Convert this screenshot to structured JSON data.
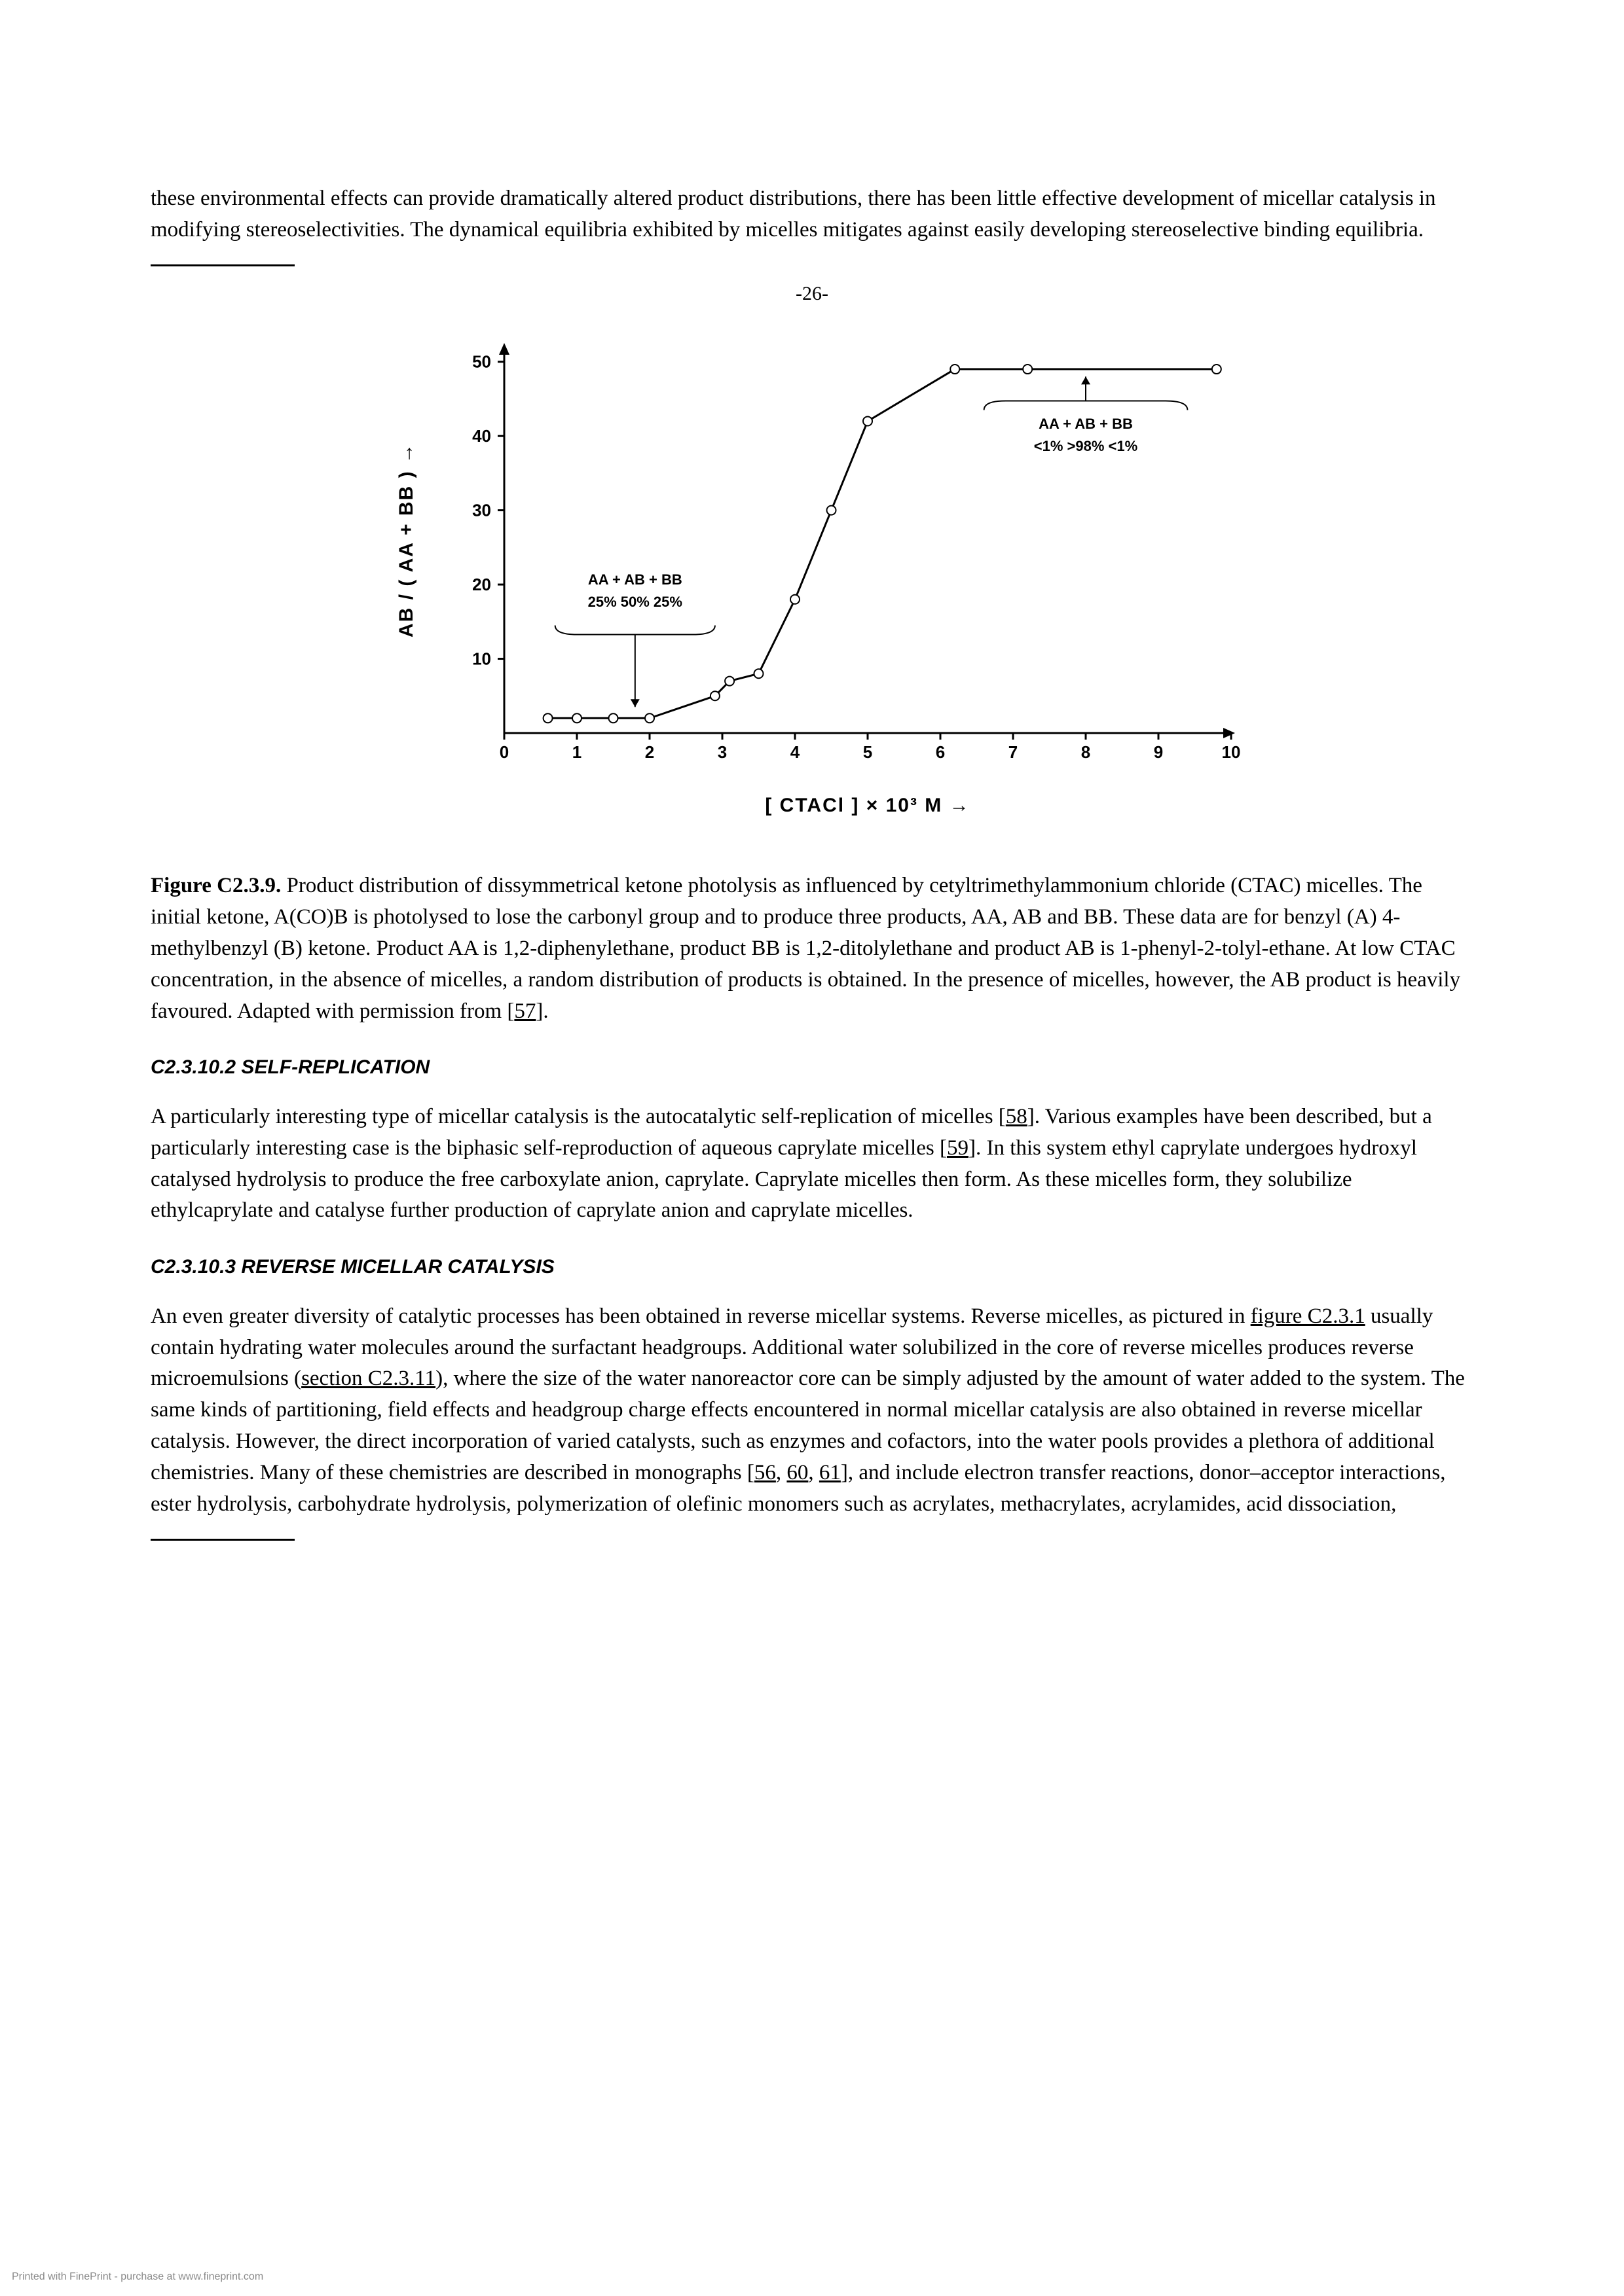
{
  "intro_paragraph": "these environmental effects can provide dramatically altered product distributions, there has been little effective development of micellar catalysis in modifying stereoselectivities. The dynamical equilibria exhibited by micelles mitigates against easily developing stereoselective binding equilibria.",
  "page_marker": "-26-",
  "chart": {
    "type": "line-scatter",
    "x_values": [
      0.6,
      1.0,
      1.5,
      2.0,
      2.9,
      3.1,
      3.5,
      4.0,
      4.5,
      5.0,
      6.2,
      7.2,
      9.8
    ],
    "y_values": [
      2,
      2,
      2,
      2,
      5,
      7,
      8,
      18,
      30,
      42,
      49,
      49,
      49
    ],
    "xlim": [
      0,
      10
    ],
    "ylim": [
      0,
      52
    ],
    "xticks": [
      0,
      1,
      2,
      3,
      4,
      5,
      6,
      7,
      8,
      9,
      10
    ],
    "yticks": [
      10,
      20,
      30,
      40,
      50
    ],
    "ylabel": "AB / ( AA + BB ) →",
    "xlabel": "[ CTACl ] × 10³  M  →",
    "left_annotation": {
      "line1": "AA   +   AB   +   BB",
      "line2": "25%     50%     25%"
    },
    "right_annotation": {
      "line1": "AA   +   AB   +   BB",
      "line2": "<1%    >98%    <1%"
    },
    "marker_color": "#ffffff",
    "marker_stroke": "#000000",
    "line_color": "#000000",
    "axis_color": "#000000",
    "background_color": "#ffffff",
    "axis_fontsize": 26,
    "label_fontsize": 30,
    "annotation_fontsize": 22,
    "line_width": 3,
    "marker_radius": 7
  },
  "figure_caption": {
    "bold": "Figure C2.3.9.",
    "text": " Product distribution of dissymmetrical ketone photolysis as influenced by cetyltrimethylammonium chloride (CTAC) micelles. The initial ketone, A(CO)B is photolysed to lose the carbonyl group and to produce three products, AA, AB and BB. These data are for benzyl (A) 4-methylbenzyl (B) ketone. Product AA is 1,2-diphenylethane, product BB is 1,2-ditolylethane and product AB is 1-phenyl-2-tolyl-ethane. At low CTAC concentration, in the absence of micelles, a random distribution of products is obtained. In the presence of micelles, however, the AB product is heavily favoured. Adapted with permission from [",
    "ref": "57",
    "tail": "]."
  },
  "section1": {
    "heading": "C2.3.10.2 SELF-REPLICATION",
    "body_a": "A particularly interesting type of micellar catalysis is the autocatalytic self-replication of micelles [",
    "ref1": "58",
    "body_b": "]. Various examples have been described, but a particularly interesting case is the biphasic self-reproduction of aqueous caprylate micelles [",
    "ref2": "59",
    "body_c": "]. In this system ethyl caprylate undergoes hydroxyl catalysed hydrolysis to produce the free carboxylate anion, caprylate. Caprylate micelles then form. As these micelles form, they solubilize ethylcaprylate and catalyse further production of caprylate anion and caprylate micelles."
  },
  "section2": {
    "heading": "C2.3.10.3 REVERSE MICELLAR CATALYSIS",
    "body_a": "An even greater diversity of catalytic processes has been obtained in reverse micellar systems. Reverse micelles, as pictured in ",
    "link1": "figure C2.3.1",
    "body_b": " usually contain hydrating water molecules around the surfactant headgroups. Additional water solubilized in the core of reverse micelles produces reverse microemulsions (",
    "link2": "section C2.3.11",
    "body_c": "), where the size of the water nanoreactor core can be simply adjusted by the amount of water added to the system. The same kinds of partitioning, field effects and headgroup charge effects encountered in normal micellar catalysis are also obtained in reverse micellar catalysis. However, the direct incorporation of varied catalysts, such as enzymes and cofactors, into the water pools provides a plethora of additional chemistries. Many of these chemistries are described in monographs [",
    "ref1": "56",
    "sep1": ", ",
    "ref2": "60",
    "sep2": ", ",
    "ref3": "61",
    "body_d": "], and include electron transfer reactions, donor–acceptor interactions, ester hydrolysis, carbohydrate hydrolysis, polymerization of olefinic monomers such as acrylates, methacrylates, acrylamides, acid dissociation,"
  },
  "footer": "Printed with FinePrint - purchase at www.fineprint.com"
}
